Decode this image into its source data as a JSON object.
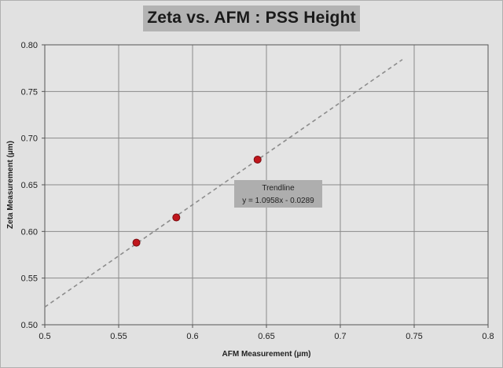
{
  "chart_data": {
    "type": "scatter",
    "title": "Zeta vs. AFM : PSS Height",
    "xlabel": "AFM Measurement (µm)",
    "ylabel": "Zeta Measurement (µm)",
    "xlim": [
      0.5,
      0.8
    ],
    "ylim": [
      0.5,
      0.8
    ],
    "xticks": [
      "0.5",
      "0.55",
      "0.6",
      "0.65",
      "0.7",
      "0.75",
      "0.8"
    ],
    "yticks": [
      "0.50",
      "0.55",
      "0.60",
      "0.65",
      "0.70",
      "0.75",
      "0.80"
    ],
    "grid": true,
    "points": [
      {
        "x": 0.562,
        "y": 0.588
      },
      {
        "x": 0.589,
        "y": 0.615
      },
      {
        "x": 0.644,
        "y": 0.677
      }
    ],
    "trendline": {
      "slope": 1.0958,
      "intercept": -0.0289,
      "x_range": [
        0.5,
        0.742
      ],
      "style": "dashed",
      "label_title": "Trendline",
      "label_equation": "y = 1.0958x - 0.0289"
    },
    "colors": {
      "marker": "#c0161c",
      "trendline": "#8c8c8c",
      "grid": "#8a8a8a",
      "plot_bg": "#e4e4e4",
      "annotation_bg": "#aeaeae"
    }
  }
}
